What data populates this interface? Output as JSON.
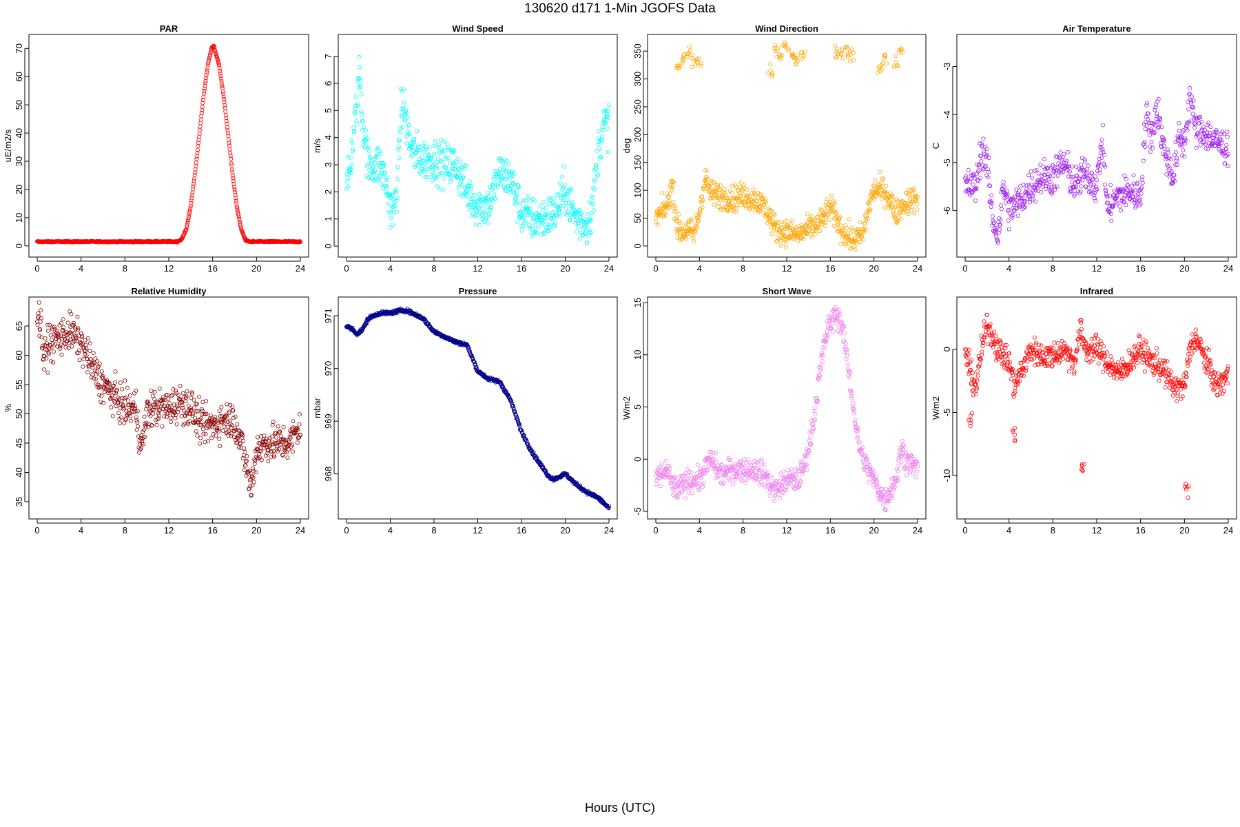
{
  "page": {
    "title": "130620   d171   1-Min  JGOFS Data",
    "x_caption": "Hours (UTC)"
  },
  "chart_data": [
    {
      "type": "scatter",
      "title": "PAR",
      "ylabel": "uE/m2/s",
      "color": "#ff0000",
      "xlim": [
        0,
        24
      ],
      "xticks": [
        0,
        4,
        8,
        12,
        16,
        20,
        24
      ],
      "ylim": [
        -2,
        73
      ],
      "yticks": [
        0,
        10,
        20,
        30,
        40,
        50,
        60,
        70
      ],
      "noise": 0.2,
      "x": [
        0,
        2,
        4,
        6,
        8,
        10,
        12,
        12.8,
        13.2,
        13.6,
        14,
        14.4,
        14.8,
        15.2,
        15.6,
        15.9,
        16.1,
        16.3,
        16.6,
        17,
        17.4,
        17.8,
        18.2,
        18.6,
        19,
        19.4,
        20,
        22,
        24
      ],
      "y": [
        1.5,
        1.5,
        1.5,
        1.5,
        1.5,
        1.5,
        1.5,
        1.5,
        2.5,
        6,
        14,
        26,
        40,
        54,
        65,
        70,
        71,
        68,
        64,
        53,
        40,
        26,
        14,
        6,
        2,
        1.5,
        1.5,
        1.5,
        1.5
      ]
    },
    {
      "type": "scatter",
      "title": "Wind Speed",
      "ylabel": "m/s",
      "color": "#00ffff",
      "xlim": [
        0,
        24
      ],
      "xticks": [
        0,
        4,
        8,
        12,
        16,
        20,
        24
      ],
      "ylim": [
        -0.2,
        7.6
      ],
      "yticks": [
        0,
        1,
        2,
        3,
        4,
        5,
        6,
        7
      ],
      "noise": 0.75,
      "x": [
        0,
        0.5,
        1,
        1.2,
        1.5,
        2,
        2.5,
        3,
        3.5,
        4,
        4.3,
        4.7,
        5,
        5.3,
        5.7,
        6,
        7,
        8,
        9,
        10,
        11,
        12,
        13,
        14,
        15,
        16,
        17,
        18,
        19,
        20,
        21,
        22,
        22.5,
        23,
        23.5,
        24
      ],
      "y": [
        2,
        3.5,
        5.5,
        6.5,
        4.5,
        3,
        3,
        3,
        2.5,
        1.5,
        1.2,
        2.5,
        5.2,
        5,
        4,
        3.5,
        3.2,
        3.2,
        3,
        3,
        2,
        1.5,
        1.5,
        2.7,
        2.5,
        1.2,
        1,
        1,
        1.2,
        2,
        1,
        0.8,
        1.5,
        3.5,
        4.5,
        4.5
      ]
    },
    {
      "type": "scatter",
      "title": "Wind Direction",
      "ylabel": "deg",
      "color": "#ffa500",
      "xlim": [
        0,
        24
      ],
      "xticks": [
        0,
        4,
        8,
        12,
        16,
        20,
        24
      ],
      "ylim": [
        -10,
        370
      ],
      "yticks": [
        0,
        50,
        100,
        150,
        200,
        250,
        300,
        350
      ],
      "noise": 22,
      "x": [
        0,
        1,
        1.5,
        2,
        2.5,
        3,
        3.5,
        4,
        4.5,
        5,
        6,
        7,
        8,
        9,
        10,
        11,
        12,
        13,
        14,
        15,
        16,
        17,
        18,
        19,
        19.5,
        20,
        21,
        22,
        23,
        24
      ],
      "y": [
        50,
        70,
        110,
        30,
        25,
        30,
        20,
        60,
        125,
        95,
        90,
        85,
        90,
        85,
        70,
        30,
        25,
        20,
        30,
        40,
        70,
        30,
        10,
        20,
        70,
        100,
        100,
        60,
        80,
        85
      ],
      "extra_x": [
        2,
        2.5,
        3,
        3.5,
        4,
        10.5,
        11,
        11.5,
        12,
        12.5,
        13,
        13.5,
        16.5,
        17,
        17.5,
        18,
        20.5,
        21,
        22,
        22.5
      ],
      "extra_y": [
        320,
        340,
        345,
        330,
        330,
        315,
        350,
        345,
        355,
        340,
        330,
        345,
        350,
        345,
        350,
        345,
        320,
        340,
        335,
        345
      ]
    },
    {
      "type": "scatter",
      "title": "Air Temperature",
      "ylabel": "C",
      "color": "#a020f0",
      "xlim": [
        0,
        24
      ],
      "xticks": [
        0,
        4,
        8,
        12,
        16,
        20,
        24
      ],
      "ylim": [
        -6.85,
        -2.45
      ],
      "yticks": [
        -6,
        -5,
        -4,
        -3
      ],
      "noise": 0.35,
      "x": [
        0,
        1,
        1.5,
        2,
        2.5,
        3,
        3.5,
        4,
        5,
        6,
        7,
        8,
        9,
        10,
        11,
        12,
        12.5,
        13,
        13.5,
        14,
        15,
        16,
        16.5,
        17,
        17.5,
        18,
        18.5,
        19,
        19.5,
        20,
        20.5,
        21,
        22,
        23,
        24
      ],
      "y": [
        -5.5,
        -5.5,
        -4.7,
        -5,
        -6.2,
        -6.5,
        -5.5,
        -6,
        -5.8,
        -5.5,
        -5.3,
        -5.3,
        -5,
        -5.5,
        -5.2,
        -5.5,
        -4.5,
        -6,
        -5.8,
        -5.7,
        -5.6,
        -5.7,
        -4,
        -4.5,
        -3.8,
        -4.6,
        -5,
        -5.3,
        -4.5,
        -4.6,
        -3.6,
        -4.3,
        -4.4,
        -4.6,
        -4.7
      ]
    },
    {
      "type": "scatter",
      "title": "Relative Humidity",
      "ylabel": "%",
      "color": "#8b0000",
      "xlim": [
        0,
        24
      ],
      "xticks": [
        0,
        4,
        8,
        12,
        16,
        20,
        24
      ],
      "ylim": [
        33,
        69
      ],
      "yticks": [
        35,
        40,
        45,
        50,
        55,
        60,
        65
      ],
      "noise": 3,
      "x": [
        0,
        0.3,
        0.6,
        1,
        2,
        3,
        4,
        5,
        6,
        7,
        8,
        9,
        9.5,
        10,
        10.5,
        11,
        12,
        13,
        14,
        15,
        16,
        17,
        18,
        19,
        19.5,
        20,
        21,
        22,
        23,
        24
      ],
      "y": [
        67,
        66,
        59,
        62,
        63,
        64,
        62,
        58,
        55,
        53,
        51,
        51,
        44,
        50,
        51,
        51,
        51,
        52,
        51,
        48,
        48,
        49,
        49,
        42,
        37,
        44,
        45,
        45,
        45,
        48
      ]
    },
    {
      "type": "scatter",
      "title": "Pressure",
      "ylabel": "mbar",
      "color": "#00008b",
      "xlim": [
        0,
        24
      ],
      "xticks": [
        0,
        4,
        8,
        12,
        16,
        20,
        24
      ],
      "ylim": [
        967.25,
        971.25
      ],
      "yticks": [
        968,
        969,
        970,
        971
      ],
      "noise": 0.03,
      "x": [
        0,
        0.5,
        1,
        1.5,
        2,
        3,
        4,
        5,
        5.5,
        6,
        7,
        8,
        9,
        10,
        11,
        12,
        13,
        14,
        15,
        16,
        17,
        18,
        18.5,
        19,
        20,
        21,
        22,
        23,
        24
      ],
      "y": [
        970.8,
        970.75,
        970.65,
        970.75,
        970.95,
        971.05,
        971.05,
        971.1,
        971.1,
        971.05,
        970.95,
        970.7,
        970.6,
        970.5,
        970.45,
        969.95,
        969.8,
        969.75,
        969.4,
        968.8,
        968.4,
        968.1,
        967.95,
        967.9,
        968,
        967.8,
        967.65,
        967.55,
        967.35
      ]
    },
    {
      "type": "scatter",
      "title": "Short Wave",
      "ylabel": "W/m2",
      "color": "#ee82ee",
      "xlim": [
        0,
        24
      ],
      "xticks": [
        0,
        4,
        8,
        12,
        16,
        20,
        24
      ],
      "ylim": [
        -5.2,
        15
      ],
      "yticks": [
        -5,
        0,
        5,
        10,
        15
      ],
      "noise": 1.1,
      "x": [
        0,
        1,
        1.5,
        2,
        3,
        4,
        5,
        6,
        7,
        8,
        9,
        10,
        10.5,
        11,
        12,
        13,
        13.5,
        14,
        14.5,
        15,
        15.5,
        16,
        16.5,
        17,
        17.5,
        18,
        18.5,
        19,
        19.5,
        20,
        20.5,
        21,
        22,
        22.5,
        23,
        24
      ],
      "y": [
        -2,
        -1,
        -2.5,
        -3,
        -2,
        -2,
        0,
        -1.5,
        -1,
        -1,
        -1,
        -1.5,
        -2.5,
        -3,
        -2,
        -2,
        -1,
        1,
        4,
        8,
        11.5,
        13,
        14,
        13,
        10,
        6,
        2,
        0,
        -1,
        -2,
        -3,
        -4,
        -2,
        1,
        0,
        -1
      ]
    },
    {
      "type": "scatter",
      "title": "Infrared",
      "ylabel": "W/m2",
      "color": "#ff0000",
      "xlim": [
        0,
        24
      ],
      "xticks": [
        0,
        4,
        8,
        12,
        16,
        20,
        24
      ],
      "ylim": [
        -13,
        3.7
      ],
      "yticks": [
        -10,
        -5,
        0
      ],
      "noise": 1.0,
      "x": [
        0,
        0.5,
        1,
        1.5,
        2,
        3,
        4,
        4.5,
        5,
        6,
        7,
        8,
        9,
        10,
        10.5,
        11,
        12,
        13,
        14,
        15,
        16,
        17,
        18,
        19,
        19.5,
        20,
        20.5,
        21,
        22,
        23,
        24
      ],
      "y": [
        0,
        -2,
        -3,
        0,
        2,
        0,
        -1,
        -3,
        -2,
        0,
        -0.5,
        -0.5,
        0,
        -1,
        1.5,
        0,
        0,
        -1,
        -2,
        -1,
        0,
        -1,
        -1.5,
        -3,
        -3,
        -3,
        0,
        1,
        -1,
        -3,
        -2
      ],
      "extra_x": [
        0.5,
        4.5,
        10.7,
        20.2
      ],
      "extra_y": [
        -5.5,
        -6.5,
        -9.5,
        -11
      ]
    }
  ]
}
